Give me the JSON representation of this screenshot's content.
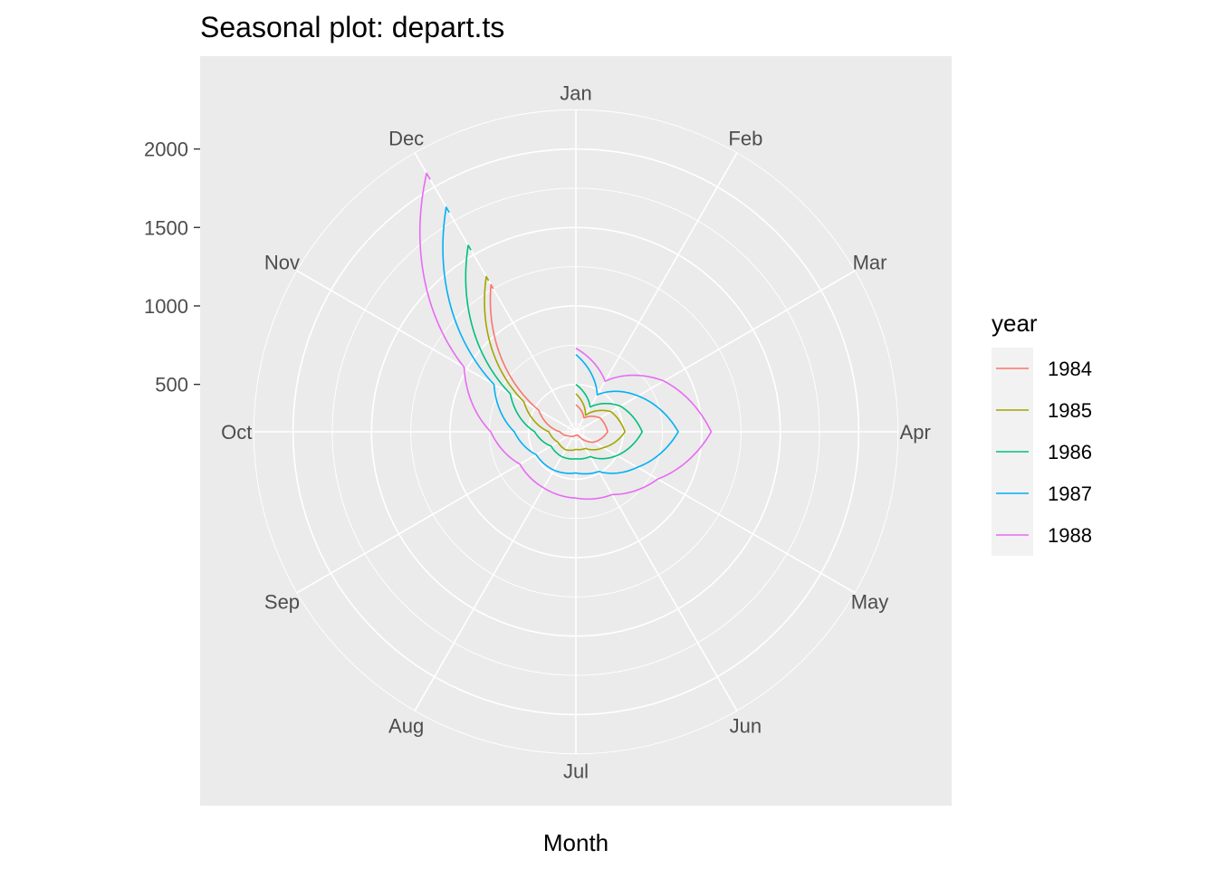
{
  "chart_data": {
    "type": "line",
    "coord": "polar",
    "title": "Seasonal plot: depart.ts",
    "xlabel": "Month",
    "ylabel": "",
    "categories": [
      "Jan",
      "Feb",
      "Mar",
      "Apr",
      "May",
      "Jun",
      "Jul",
      "Aug",
      "Sep",
      "Oct",
      "Nov",
      "Dec"
    ],
    "y_ticks": [
      500,
      1000,
      1500,
      2000
    ],
    "grid": true,
    "panel_background": "#ebebeb",
    "grid_color": "#ffffff",
    "legend": {
      "title": "year",
      "position": "right"
    },
    "series": [
      {
        "name": "1984",
        "color": "#F8766D",
        "values": [
          370,
          300,
          375,
          400,
          330,
          220,
          220,
          230,
          250,
          300,
          470,
          1280
        ]
      },
      {
        "name": "1985",
        "color": "#A3A500",
        "values": [
          440,
          320,
          455,
          510,
          400,
          320,
          310,
          330,
          330,
          370,
          580,
          1340
        ]
      },
      {
        "name": "1986",
        "color": "#00BF7D",
        "values": [
          500,
          380,
          525,
          620,
          500,
          380,
          370,
          380,
          380,
          460,
          680,
          1570
        ]
      },
      {
        "name": "1987",
        "color": "#00B0F6",
        "values": [
          690,
          470,
          655,
          850,
          650,
          490,
          460,
          480,
          490,
          590,
          800,
          1850
        ]
      },
      {
        "name": "1988",
        "color": "#E76BF3",
        "values": [
          730,
          570,
          845,
          1060,
          800,
          660,
          620,
          610,
          610,
          740,
          1020,
          2100
        ]
      }
    ]
  }
}
